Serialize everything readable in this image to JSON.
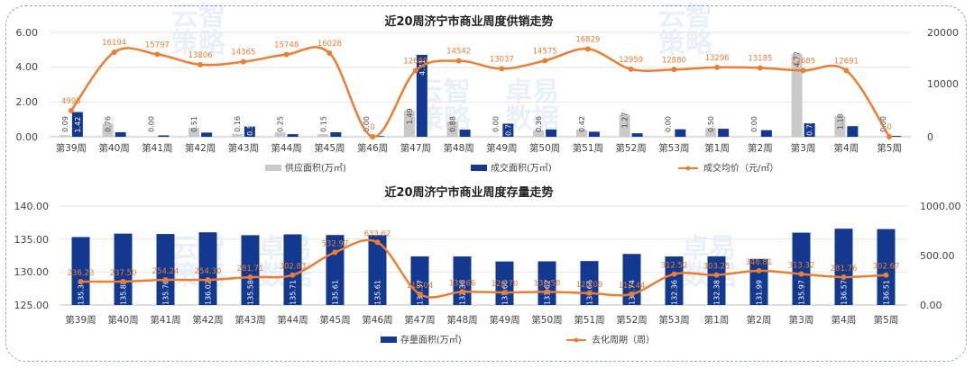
{
  "watermark": {
    "brand1": "云智",
    "brand2": "策略",
    "brand3": "卓易",
    "brand4": "数据"
  },
  "colors": {
    "supply": "#c9c9c9",
    "deal": "#12388f",
    "price": "#ed7d31",
    "grid": "#e6e6e6",
    "text": "#444444"
  },
  "chart_data": [
    {
      "type": "bar+line",
      "title": "近20周济宁市商业周度供销走势",
      "categories": [
        "第39周",
        "第40周",
        "第41周",
        "第42周",
        "第43周",
        "第44周",
        "第45周",
        "第46周",
        "第47周",
        "第48周",
        "第49周",
        "第50周",
        "第51周",
        "第52周",
        "第53周",
        "第1周",
        "第2周",
        "第3周",
        "第4周",
        "第5周"
      ],
      "y_left": {
        "min": 0,
        "max": 6,
        "ticks": [
          "0.00",
          "2.00",
          "4.00",
          "6.00"
        ]
      },
      "y_right": {
        "min": 0,
        "max": 20000,
        "ticks": [
          "0",
          "10000",
          "20000"
        ]
      },
      "series": [
        {
          "name": "供应面积(万㎡)",
          "kind": "bar",
          "axis": "left",
          "values": [
            0.09,
            0.76,
            0.0,
            0.51,
            0.16,
            0.25,
            0.15,
            0.0,
            1.49,
            0.88,
            0.0,
            0.36,
            0.42,
            1.27,
            0.0,
            0.5,
            0.0,
            4.77,
            1.18,
            0.0
          ],
          "labels": [
            "0.09",
            "0.76",
            "0.00",
            "0.51",
            "0.16",
            "0.25",
            "0.15",
            "0.00",
            "1.49",
            "0.88",
            "0.00",
            "0.36",
            "0.42",
            "1.27",
            "0.00",
            "0.50",
            "0.00",
            "4.77",
            "1.18",
            "0.00"
          ]
        },
        {
          "name": "成交面积(万㎡)",
          "kind": "bar",
          "axis": "left",
          "values": [
            1.42,
            0.26,
            0.08,
            0.24,
            0.59,
            0.15,
            0.26,
            0.04,
            4.71,
            0.41,
            0.75,
            0.42,
            0.29,
            0.2,
            0.43,
            0.46,
            0.38,
            0.78,
            0.61,
            0.05
          ],
          "labels": [
            "1.42",
            "",
            "",
            "",
            "0.59",
            "",
            "",
            "",
            "4.71",
            "",
            "0.75",
            "",
            "",
            "",
            "",
            "",
            "",
            "0.78",
            "",
            ""
          ]
        },
        {
          "name": "成交均价（元/㎡）",
          "kind": "line",
          "axis": "right",
          "values": [
            4998,
            16194,
            15797,
            13806,
            14365,
            15748,
            16028,
            0,
            12689,
            14542,
            13037,
            14575,
            16829,
            12959,
            12880,
            13296,
            13185,
            12685,
            12691,
            0
          ],
          "labels": [
            "4998",
            "16194",
            "15797",
            "13806",
            "14365",
            "15748",
            "16028",
            "0",
            "12689",
            "14542",
            "13037",
            "14575",
            "16829",
            "12959",
            "12880",
            "13296",
            "13185",
            "12685",
            "12691",
            "0"
          ]
        }
      ]
    },
    {
      "type": "bar+line",
      "title": "近20周济宁市商业周度存量走势",
      "categories": [
        "第39周",
        "第40周",
        "第41周",
        "第42周",
        "第43周",
        "第44周",
        "第45周",
        "第46周",
        "第47周",
        "第48周",
        "第49周",
        "第50周",
        "第51周",
        "第52周",
        "第53周",
        "第1周",
        "第2周",
        "第3周",
        "第4周",
        "第5周"
      ],
      "y_left": {
        "min": 125,
        "max": 140,
        "ticks": [
          "125.00",
          "130.00",
          "135.00",
          "140.00"
        ]
      },
      "y_right": {
        "min": 0,
        "max": 1000,
        "ticks": [
          "0.00",
          "500.00",
          "1000.00"
        ]
      },
      "series": [
        {
          "name": "存量面积(万㎡)",
          "kind": "bar",
          "axis": "left",
          "values": [
            135.3,
            135.82,
            135.76,
            136.02,
            135.58,
            135.71,
            135.61,
            135.61,
            132.37,
            132.36,
            131.6,
            131.62,
            131.66,
            132.74,
            132.36,
            132.38,
            131.99,
            135.97,
            136.57,
            136.51
          ],
          "labels": [
            "135.30",
            "135.82",
            "135.76",
            "136.02",
            "135.58",
            "135.71",
            "135.61",
            "135.61",
            "132.37",
            "132.36",
            "131.60",
            "131.62",
            "131.66",
            "132.74",
            "132.36",
            "132.38",
            "131.99",
            "135.97",
            "136.57",
            "136.51"
          ]
        },
        {
          "name": "去化周期（周）",
          "kind": "line",
          "axis": "right",
          "values": [
            236.23,
            237.5,
            254.24,
            254.3,
            281.71,
            302.83,
            532.97,
            633.62,
            110.04,
            133.66,
            126.7,
            132.58,
            120.09,
            110.44,
            312.52,
            303.25,
            346.81,
            313.32,
            281.76,
            302.67
          ],
          "labels": [
            "236.23",
            "237.50",
            "254.24",
            "254.30",
            "281.71",
            "302.83",
            "532.97",
            "633.62",
            "110.04",
            "133.66",
            "126.70",
            "132.58",
            "120.09",
            "110.44",
            "312.52",
            "303.25",
            "346.81",
            "313.32",
            "281.76",
            "302.67"
          ]
        }
      ]
    }
  ]
}
